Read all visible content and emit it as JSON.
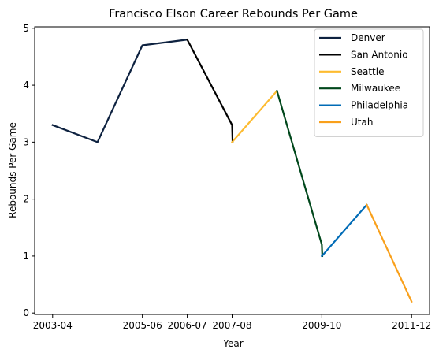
{
  "chart_data": {
    "type": "line",
    "title": "Francisco Elson Career Rebounds Per Game",
    "xlabel": "Year",
    "ylabel": "Rebounds Per Game",
    "x_ticks": [
      "2003-04",
      "2005-06",
      "2006-07",
      "2007-08",
      "2009-10",
      "2011-12"
    ],
    "y_ticks": [
      "0",
      "1",
      "2",
      "3",
      "4",
      "5"
    ],
    "ylim": [
      0,
      5
    ],
    "grid": false,
    "legend_position": "top-right",
    "series": [
      {
        "name": "Denver",
        "color": "#0e2240",
        "points": [
          {
            "x": "2003-04",
            "y": 3.3
          },
          {
            "x": "2004-05",
            "y": 3.0
          },
          {
            "x": "2005-06",
            "y": 4.7
          },
          {
            "x": "2006-07",
            "y": 4.8
          }
        ]
      },
      {
        "name": "San Antonio",
        "color": "#000000",
        "points": [
          {
            "x": "2006-07",
            "y": 4.8
          },
          {
            "x": "2007-08",
            "y": 3.3
          },
          {
            "x": "2007-08",
            "y": 3.0
          }
        ]
      },
      {
        "name": "Seattle",
        "color": "#fdbb30",
        "points": [
          {
            "x": "2007-08",
            "y": 3.0
          },
          {
            "x": "2008-09",
            "y": 3.9
          }
        ]
      },
      {
        "name": "Milwaukee",
        "color": "#00471b",
        "points": [
          {
            "x": "2008-09",
            "y": 3.9
          },
          {
            "x": "2009-10",
            "y": 1.2
          },
          {
            "x": "2009-10",
            "y": 1.0
          }
        ]
      },
      {
        "name": "Philadelphia",
        "color": "#006bb6",
        "points": [
          {
            "x": "2009-10",
            "y": 1.0
          },
          {
            "x": "2010-11",
            "y": 1.9
          }
        ]
      },
      {
        "name": "Utah",
        "color": "#f9a01b",
        "points": [
          {
            "x": "2010-11",
            "y": 1.9
          },
          {
            "x": "2011-12",
            "y": 0.2
          }
        ]
      }
    ]
  }
}
